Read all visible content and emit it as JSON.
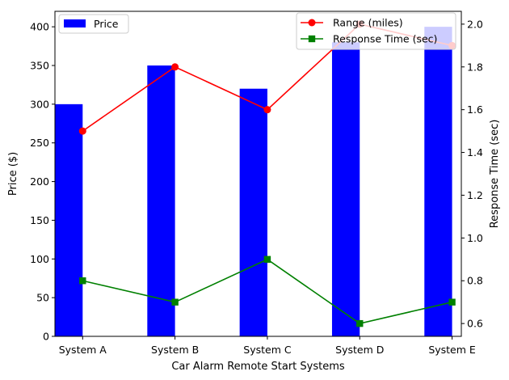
{
  "chart_data": {
    "type": "bar",
    "categories": [
      "System A",
      "System B",
      "System C",
      "System D",
      "System E"
    ],
    "xlabel": "Car Alarm Remote Start Systems",
    "ylabel_left": "Price ($)",
    "ylabel_right": "Response Time (sec)",
    "ylim_left": [
      0,
      420
    ],
    "ylim_right": [
      0.54,
      2.06
    ],
    "yticks_left": [
      0,
      50,
      100,
      150,
      200,
      250,
      300,
      350,
      400
    ],
    "yticks_right": [
      0.6,
      0.8,
      1.0,
      1.2,
      1.4,
      1.6,
      1.8,
      2.0
    ],
    "grid": false,
    "series": [
      {
        "name": "Price",
        "type": "bar",
        "axis": "left",
        "color": "#0000ff",
        "values": [
          300,
          350,
          320,
          380,
          400
        ]
      },
      {
        "name": "Range (miles)",
        "type": "line",
        "axis": "right",
        "marker": "circle",
        "color": "#ff0000",
        "values": [
          1.5,
          1.8,
          1.6,
          2.0,
          1.9
        ]
      },
      {
        "name": "Response Time (sec)",
        "type": "line",
        "axis": "right",
        "marker": "square",
        "color": "#008000",
        "values": [
          0.8,
          0.7,
          0.9,
          0.6,
          0.7
        ]
      }
    ],
    "legend_left": {
      "placement": "top-left",
      "entries": [
        "Price"
      ]
    },
    "legend_right": {
      "placement": "top-right",
      "entries": [
        "Range (miles)",
        "Response Time (sec)"
      ]
    }
  }
}
